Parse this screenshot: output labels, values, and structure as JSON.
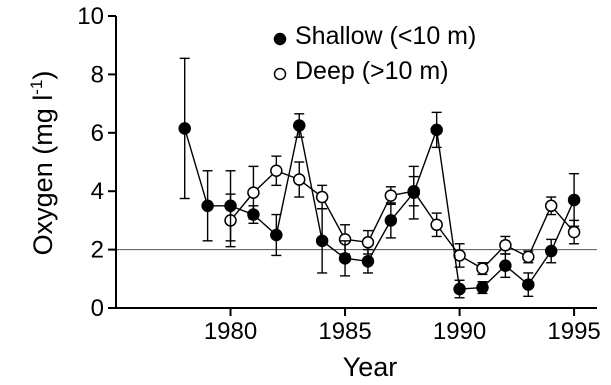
{
  "chart_data": {
    "type": "line",
    "xlabel": "Year",
    "ylabel_main": "Oxygen (mg l",
    "ylabel_sup": "-1",
    "ylabel_close": ")",
    "xlim": [
      1975,
      1996
    ],
    "ylim": [
      0,
      10
    ],
    "xticks": [
      "1980",
      "1985",
      "1990",
      "1995"
    ],
    "yticks": [
      "0",
      "2",
      "4",
      "6",
      "8",
      "10"
    ],
    "reference_line_y": 2,
    "grid": false,
    "legend_position": "top-right",
    "series": [
      {
        "name": "Shallow (<10 m)",
        "marker": "filled-circle",
        "color": "#000000",
        "x": [
          1978,
          1979,
          1980,
          1981,
          1982,
          1983,
          1984,
          1985,
          1986,
          1987,
          1988,
          1989,
          1990,
          1991,
          1992,
          1993,
          1994,
          1995
        ],
        "y": [
          6.15,
          3.5,
          3.5,
          3.2,
          2.5,
          6.25,
          2.3,
          1.7,
          1.6,
          3.0,
          3.95,
          6.1,
          0.65,
          0.7,
          1.45,
          0.8,
          1.95,
          3.7
        ],
        "err": [
          2.4,
          1.2,
          1.2,
          0.3,
          0.7,
          0.4,
          1.1,
          0.6,
          0.4,
          0.6,
          0.9,
          0.6,
          0.3,
          0.2,
          0.4,
          0.4,
          0.4,
          0.9
        ]
      },
      {
        "name": "Deep (>10 m)",
        "marker": "open-circle",
        "color": "#000000",
        "x": [
          1980,
          1981,
          1982,
          1983,
          1984,
          1985,
          1986,
          1987,
          1988,
          1989,
          1990,
          1991,
          1992,
          1993,
          1994,
          1995
        ],
        "y": [
          3.0,
          3.95,
          4.7,
          4.4,
          3.8,
          2.35,
          2.25,
          3.85,
          4.0,
          2.85,
          1.8,
          1.35,
          2.15,
          1.75,
          3.5,
          2.6
        ],
        "err": [
          0.9,
          0.9,
          0.5,
          0.6,
          0.4,
          0.5,
          0.4,
          0.3,
          0.5,
          0.4,
          0.4,
          0.2,
          0.3,
          0.2,
          0.3,
          0.4
        ]
      }
    ]
  }
}
